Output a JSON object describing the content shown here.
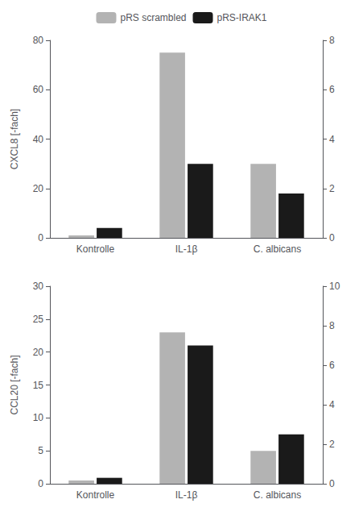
{
  "chart_data": [
    {
      "type": "bar",
      "ylabel": "CXCL8 [-fach]",
      "categories": [
        "Kontrolle",
        "IL-1β",
        "C. albicans"
      ],
      "series": [
        {
          "name": "pRS scrambled",
          "color": "#b3b3b3",
          "values": [
            1,
            75,
            30
          ]
        },
        {
          "name": "pRS-IRAK1",
          "color": "#1a1a1a",
          "values": [
            0.4,
            3.0,
            1.8
          ],
          "axis": "y2"
        }
      ],
      "ylim": [
        0,
        80
      ],
      "yticks": [
        0,
        20,
        40,
        60,
        80
      ],
      "y2lim": [
        0,
        8
      ],
      "y2ticks": [
        0,
        2,
        4,
        6,
        8
      ],
      "grid": false,
      "legend": "top"
    },
    {
      "type": "bar",
      "ylabel": "CCL20 [-fach]",
      "categories": [
        "Kontrolle",
        "IL-1β",
        "C. albicans"
      ],
      "series": [
        {
          "name": "pRS scrambled",
          "color": "#b3b3b3",
          "values": [
            0.5,
            23,
            5
          ]
        },
        {
          "name": "pRS-IRAK1",
          "color": "#1a1a1a",
          "values": [
            0.3,
            7,
            2.5
          ],
          "axis": "y2"
        }
      ],
      "ylim": [
        0,
        30
      ],
      "yticks": [
        0,
        5,
        10,
        15,
        20,
        25,
        30
      ],
      "y2lim": [
        0,
        10
      ],
      "y2ticks": [
        0,
        2,
        4,
        6,
        8,
        10
      ],
      "grid": false
    }
  ]
}
